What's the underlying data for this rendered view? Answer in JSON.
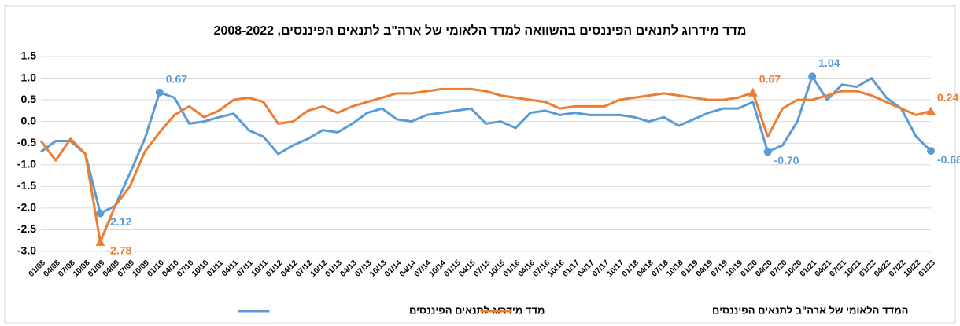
{
  "chart_data": {
    "type": "line",
    "title": "מדד מידרוג לתנאים הפיננסים בהשוואה למדד הלאומי של ארה\"ב לתנאים הפיננסים, 2008-2022",
    "categories": [
      "01/08",
      "04/08",
      "07/08",
      "10/08",
      "01/09",
      "04/09",
      "07/09",
      "10/09",
      "01/10",
      "04/10",
      "07/10",
      "10/10",
      "01/11",
      "04/11",
      "07/11",
      "10/11",
      "01/12",
      "04/12",
      "07/12",
      "10/12",
      "01/13",
      "04/13",
      "07/13",
      "10/13",
      "01/14",
      "04/14",
      "07/14",
      "10/14",
      "01/15",
      "04/15",
      "07/15",
      "10/15",
      "01/16",
      "04/16",
      "07/16",
      "10/16",
      "01/17",
      "04/17",
      "07/17",
      "10/17",
      "01/18",
      "04/18",
      "07/18",
      "10/18",
      "01/19",
      "04/19",
      "07/19",
      "10/19",
      "01/20",
      "04/20",
      "07/20",
      "10/20",
      "01/21",
      "04/21",
      "07/21",
      "10/21",
      "01/22",
      "04/22",
      "07/22",
      "10/22",
      "01/23"
    ],
    "series": [
      {
        "name": "מדד מידרוג לתנאים הפיננסים",
        "color": "#5b9bd5",
        "marker": "circle",
        "values": [
          -0.7,
          -0.45,
          -0.45,
          -0.75,
          -2.12,
          -1.95,
          -1.2,
          -0.4,
          0.67,
          0.55,
          -0.05,
          0.0,
          0.1,
          0.18,
          -0.2,
          -0.35,
          -0.75,
          -0.55,
          -0.4,
          -0.2,
          -0.25,
          -0.05,
          0.2,
          0.3,
          0.05,
          0.0,
          0.15,
          0.2,
          0.25,
          0.3,
          -0.05,
          0.0,
          -0.15,
          0.2,
          0.25,
          0.15,
          0.2,
          0.15,
          0.15,
          0.15,
          0.1,
          0.0,
          0.1,
          -0.1,
          0.05,
          0.2,
          0.3,
          0.3,
          0.45,
          -0.7,
          -0.55,
          0.0,
          1.04,
          0.5,
          0.85,
          0.8,
          1.0,
          0.55,
          0.3,
          -0.35,
          -0.68
        ],
        "value_labels": [
          null,
          null,
          null,
          null,
          "-2.12",
          null,
          null,
          null,
          "0.67",
          null,
          null,
          null,
          null,
          null,
          null,
          null,
          null,
          null,
          null,
          null,
          null,
          null,
          null,
          null,
          null,
          null,
          null,
          null,
          null,
          null,
          null,
          null,
          null,
          null,
          null,
          null,
          null,
          null,
          null,
          null,
          null,
          null,
          null,
          null,
          null,
          null,
          null,
          null,
          null,
          "-0.70",
          null,
          null,
          "1.04",
          null,
          null,
          null,
          null,
          null,
          null,
          null,
          "-0.68"
        ]
      },
      {
        "name": "המדד הלאומי של ארה\"ב לתנאים הפיננסים",
        "color": "#ed7d31",
        "marker": "triangle",
        "values": [
          -0.45,
          -0.9,
          -0.4,
          -0.75,
          -2.78,
          -1.95,
          -1.5,
          -0.7,
          -0.25,
          0.15,
          0.35,
          0.1,
          0.25,
          0.5,
          0.55,
          0.45,
          -0.05,
          0.0,
          0.25,
          0.35,
          0.2,
          0.35,
          0.45,
          0.55,
          0.65,
          0.65,
          0.7,
          0.75,
          0.75,
          0.75,
          0.7,
          0.6,
          0.55,
          0.5,
          0.45,
          0.3,
          0.35,
          0.35,
          0.35,
          0.5,
          0.55,
          0.6,
          0.65,
          0.6,
          0.55,
          0.5,
          0.5,
          0.55,
          0.67,
          -0.35,
          0.3,
          0.5,
          0.5,
          0.6,
          0.7,
          0.7,
          0.6,
          0.45,
          0.3,
          0.15,
          0.24
        ],
        "value_labels": [
          null,
          null,
          null,
          null,
          "-2.78",
          null,
          null,
          null,
          null,
          null,
          null,
          null,
          null,
          null,
          null,
          null,
          null,
          null,
          null,
          null,
          null,
          null,
          null,
          null,
          null,
          null,
          null,
          null,
          null,
          null,
          null,
          null,
          null,
          null,
          null,
          null,
          null,
          null,
          null,
          null,
          null,
          null,
          null,
          null,
          null,
          null,
          null,
          null,
          "0.67",
          null,
          null,
          null,
          null,
          null,
          null,
          null,
          null,
          null,
          null,
          null,
          "0.24"
        ]
      }
    ],
    "ylim": [
      -3,
      1.5
    ],
    "yticks": [
      {
        "value": -3,
        "label": "-3.0"
      },
      -2.5,
      {
        "value": -2,
        "label": "-2.0"
      },
      -1.5,
      {
        "value": -1,
        "label": "-1.0"
      },
      -0.5,
      {
        "value": 0,
        "label": "0.0"
      },
      0.5,
      {
        "value": 1,
        "label": "1.0"
      },
      1.5
    ],
    "grid": true
  }
}
